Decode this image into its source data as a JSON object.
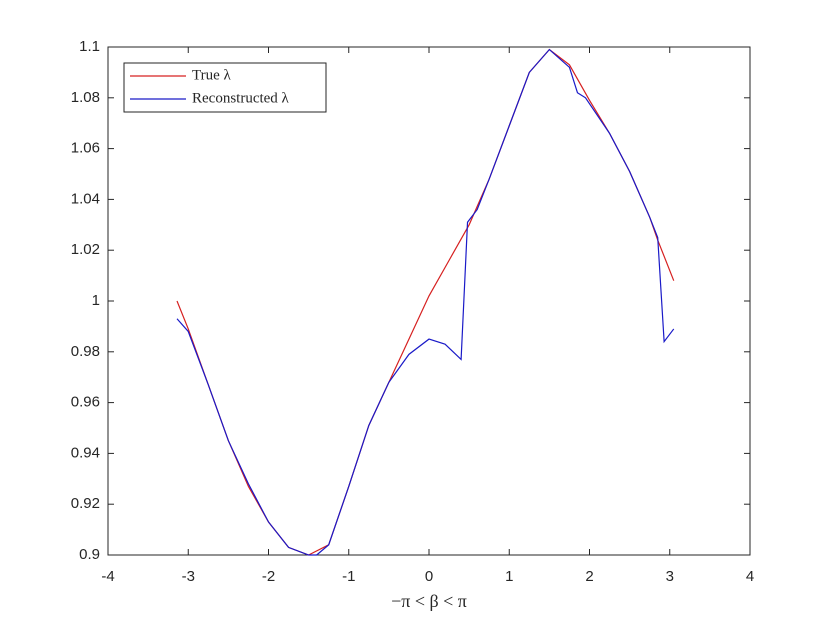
{
  "chart_data": {
    "type": "line",
    "xlabel": "−π < β < π",
    "xlim": [
      -4,
      4
    ],
    "xticks": [
      -4,
      -3,
      -2,
      -1,
      0,
      1,
      2,
      3,
      4
    ],
    "ylim": [
      0.9,
      1.1
    ],
    "yticks": [
      0.9,
      0.92,
      0.94,
      0.96,
      0.98,
      1,
      1.02,
      1.04,
      1.06,
      1.08,
      1.1
    ],
    "legend": "upper-left",
    "series": [
      {
        "name": "True λ",
        "color": "#d62020",
        "x": [
          -3.14,
          -3.0,
          -2.75,
          -2.5,
          -2.25,
          -2.0,
          -1.75,
          -1.5,
          -1.25,
          -1.0,
          -0.75,
          -0.5,
          -0.25,
          0,
          0.25,
          0.5,
          0.75,
          1.0,
          1.25,
          1.5,
          1.75,
          2.0,
          2.25,
          2.5,
          2.75,
          2.85,
          3.05
        ],
        "values": [
          1.0,
          0.989,
          0.967,
          0.945,
          0.927,
          0.913,
          0.903,
          0.9,
          0.904,
          0.927,
          0.951,
          0.968,
          0.985,
          1.002,
          1.016,
          1.03,
          1.048,
          1.069,
          1.09,
          1.099,
          1.093,
          1.079,
          1.066,
          1.051,
          1.033,
          1.024,
          1.008
        ]
      },
      {
        "name": "Reconstructed λ",
        "color": "#1a1ac8",
        "x": [
          -3.14,
          -3.0,
          -2.75,
          -2.5,
          -2.25,
          -2.0,
          -1.75,
          -1.5,
          -1.4,
          -1.25,
          -1.0,
          -0.75,
          -0.5,
          -0.25,
          0,
          0.2,
          0.4,
          0.48,
          0.6,
          0.75,
          1.0,
          1.25,
          1.5,
          1.75,
          1.85,
          1.95,
          2.25,
          2.5,
          2.75,
          2.85,
          2.93,
          3.05
        ],
        "values": [
          0.993,
          0.988,
          0.967,
          0.945,
          0.928,
          0.913,
          0.903,
          0.9,
          0.9,
          0.904,
          0.927,
          0.951,
          0.968,
          0.979,
          0.985,
          0.983,
          0.977,
          1.031,
          1.036,
          1.048,
          1.069,
          1.09,
          1.099,
          1.092,
          1.082,
          1.08,
          1.066,
          1.051,
          1.033,
          1.025,
          0.984,
          0.989
        ]
      }
    ]
  }
}
